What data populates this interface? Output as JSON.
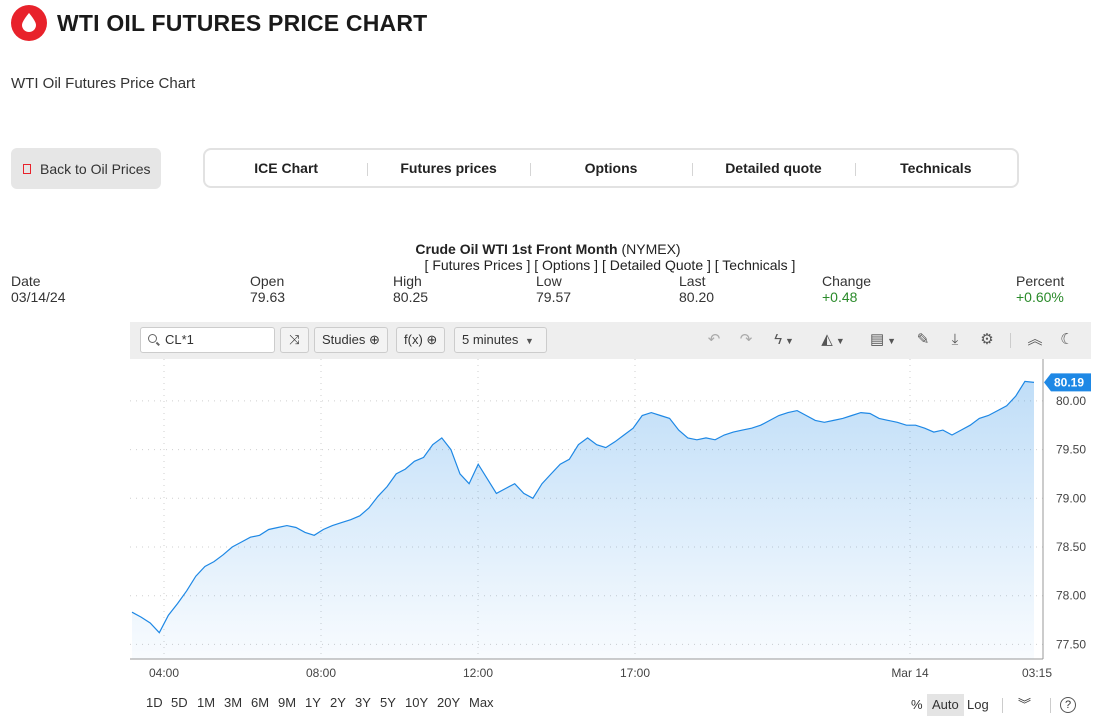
{
  "page": {
    "title": "WTI OIL FUTURES PRICE CHART",
    "subtitle": "WTI Oil Futures Price Chart",
    "back_label": "Back to Oil Prices"
  },
  "nav": [
    "ICE Chart",
    "Futures prices",
    "Options",
    "Detailed quote",
    "Technicals"
  ],
  "contract": {
    "name": "Crude Oil WTI 1st Front Month",
    "exchange": "(NYMEX)",
    "links": "[ Futures Prices ] [ Options ] [ Detailed Quote ] [ Technicals ]"
  },
  "quote": {
    "date_label": "Date",
    "date": "03/14/24",
    "open_label": "Open",
    "open": "79.63",
    "high_label": "High",
    "high": "80.25",
    "low_label": "Low",
    "low": "79.57",
    "last_label": "Last",
    "last": "80.20",
    "change_label": "Change",
    "change": "+0.48",
    "percent_label": "Percent",
    "percent": "+0.60%"
  },
  "toolbar": {
    "symbol": "CL*1",
    "studies_label": "Studies",
    "fx_label": "f(x)",
    "interval": "5 minutes"
  },
  "periods": [
    "1D",
    "5D",
    "1M",
    "3M",
    "6M",
    "9M",
    "1Y",
    "2Y",
    "3Y",
    "5Y",
    "10Y",
    "20Y",
    "Max"
  ],
  "scale_modes": [
    "%",
    "Auto",
    "Log"
  ],
  "colors": {
    "brand": "#e8222b",
    "line": "#1e88e5",
    "positive": "#2a8a2a"
  },
  "chart_data": {
    "type": "area",
    "title": "",
    "xlabel": "",
    "ylabel": "",
    "ylim": [
      77.35,
      80.43
    ],
    "yticks": [
      "77.50",
      "78.00",
      "78.50",
      "79.00",
      "79.50",
      "80.00"
    ],
    "xticks": [
      "04:00",
      "08:00",
      "12:00",
      "17:00",
      "Mar 14",
      "03:15"
    ],
    "last_price_label": "80.19",
    "series": [
      {
        "values": [
          77.83,
          77.78,
          77.72,
          77.62,
          77.8,
          77.92,
          78.05,
          78.2,
          78.3,
          78.35,
          78.42,
          78.5,
          78.55,
          78.6,
          78.62,
          78.68,
          78.7,
          78.72,
          78.7,
          78.65,
          78.62,
          78.68,
          78.72,
          78.75,
          78.78,
          78.82,
          78.9,
          79.02,
          79.12,
          79.25,
          79.3,
          79.38,
          79.42,
          79.55,
          79.62,
          79.5,
          79.25,
          79.15,
          79.35,
          79.2,
          79.05,
          79.1,
          79.15,
          79.05,
          79.0,
          79.15,
          79.25,
          79.35,
          79.4,
          79.55,
          79.62,
          79.55,
          79.52,
          79.58,
          79.65,
          79.72,
          79.85,
          79.88,
          79.85,
          79.82,
          79.7,
          79.62,
          79.6,
          79.62,
          79.6,
          79.65,
          79.68,
          79.7,
          79.72,
          79.75,
          79.8,
          79.85,
          79.88,
          79.9,
          79.85,
          79.8,
          79.78,
          79.8,
          79.82,
          79.85,
          79.88,
          79.87,
          79.82,
          79.8,
          79.78,
          79.75,
          79.75,
          79.72,
          79.68,
          79.7,
          79.65,
          79.7,
          79.75,
          79.82,
          79.85,
          79.9,
          79.95,
          80.05,
          80.2,
          80.19
        ]
      }
    ]
  }
}
